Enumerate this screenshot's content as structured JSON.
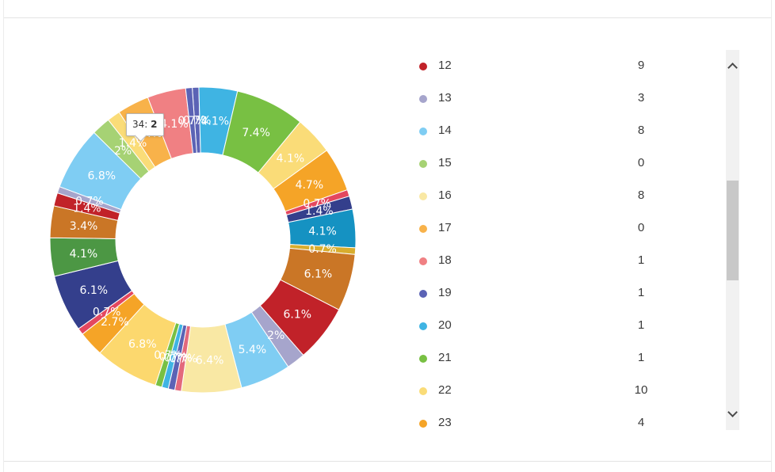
{
  "tooltip": {
    "label": "34:",
    "value": "2"
  },
  "chart_data": {
    "type": "pie",
    "style": "donut",
    "slices": [
      {
        "pct": 0.7,
        "label": "0.7%",
        "color": "#5b63b5"
      },
      {
        "pct": 4.1,
        "label": "4.1%",
        "color": "#3fb4e3"
      },
      {
        "pct": 7.4,
        "label": "7.4%",
        "color": "#78c043"
      },
      {
        "pct": 4.1,
        "label": "4.1%",
        "color": "#fadc78"
      },
      {
        "pct": 4.7,
        "label": "4.7%",
        "color": "#f5a427"
      },
      {
        "pct": 0.7,
        "label": "0.7%",
        "color": "#e4475f"
      },
      {
        "pct": 1.4,
        "label": "1.4%",
        "color": "#343f8c"
      },
      {
        "pct": 4.1,
        "label": "4.1%",
        "color": "#1592c2"
      },
      {
        "pct": 0.7,
        "label": "0.7%",
        "color": "#d8ad2e"
      },
      {
        "pct": 6.1,
        "label": "6.1%",
        "color": "#ca7626"
      },
      {
        "pct": 6.1,
        "label": "6.1%",
        "color": "#c12229"
      },
      {
        "pct": 2.0,
        "label": "2%",
        "color": "#a6a5cc"
      },
      {
        "pct": 5.4,
        "label": "5.4%",
        "color": "#7fcdf3"
      },
      {
        "pct": 6.4,
        "label": "6.4%",
        "color": "#f9e8a4"
      },
      {
        "pct": 0.7,
        "label": "0.7%",
        "color": "#e3697c"
      },
      {
        "pct": 0.7,
        "label": "0.7%",
        "color": "#5b63b5"
      },
      {
        "pct": 0.7,
        "label": "0.7%",
        "color": "#3fb4e3"
      },
      {
        "pct": 0.7,
        "label": "0.7%",
        "color": "#78c043"
      },
      {
        "pct": 6.8,
        "label": "6.8%",
        "color": "#fcd86e"
      },
      {
        "pct": 2.7,
        "label": "2.7%",
        "color": "#f5a427"
      },
      {
        "pct": 0.7,
        "label": "0.7%",
        "color": "#e4475f"
      },
      {
        "pct": 6.1,
        "label": "6.1%",
        "color": "#343f8c"
      },
      {
        "pct": 4.1,
        "label": "4.1%",
        "color": "#4c9744"
      },
      {
        "pct": 3.4,
        "label": "3.4%",
        "color": "#ca7626"
      },
      {
        "pct": 1.4,
        "label": "1.4%",
        "color": "#c12229"
      },
      {
        "pct": 0.7,
        "label": "0.7%",
        "color": "#a6a5cc"
      },
      {
        "pct": 6.8,
        "label": "6.8%",
        "color": "#7fcdf3"
      },
      {
        "pct": 2.0,
        "label": "2%",
        "color": "#a6d274"
      },
      {
        "pct": 1.4,
        "label": "1.4%",
        "color": "#fadc78"
      },
      {
        "pct": 3.4,
        "label": "3.4%",
        "color": "#f8b24a"
      },
      {
        "pct": 4.1,
        "label": "4.1%",
        "color": "#f08083"
      },
      {
        "pct": 0.7,
        "label": "0.7%",
        "color": "#5b63b5"
      }
    ],
    "legend": [
      {
        "label": "12",
        "value": "9",
        "color": "#c12229"
      },
      {
        "label": "13",
        "value": "3",
        "color": "#a6a5cc"
      },
      {
        "label": "14",
        "value": "8",
        "color": "#7fcdf3"
      },
      {
        "label": "15",
        "value": "0",
        "color": "#a6d274"
      },
      {
        "label": "16",
        "value": "8",
        "color": "#f9e8a4"
      },
      {
        "label": "17",
        "value": "0",
        "color": "#f8b24a"
      },
      {
        "label": "18",
        "value": "1",
        "color": "#f08083"
      },
      {
        "label": "19",
        "value": "1",
        "color": "#5b63b5"
      },
      {
        "label": "20",
        "value": "1",
        "color": "#3fb4e3"
      },
      {
        "label": "21",
        "value": "1",
        "color": "#78c043"
      },
      {
        "label": "22",
        "value": "10",
        "color": "#fadc78"
      },
      {
        "label": "23",
        "value": "4",
        "color": "#f5a427"
      }
    ]
  }
}
